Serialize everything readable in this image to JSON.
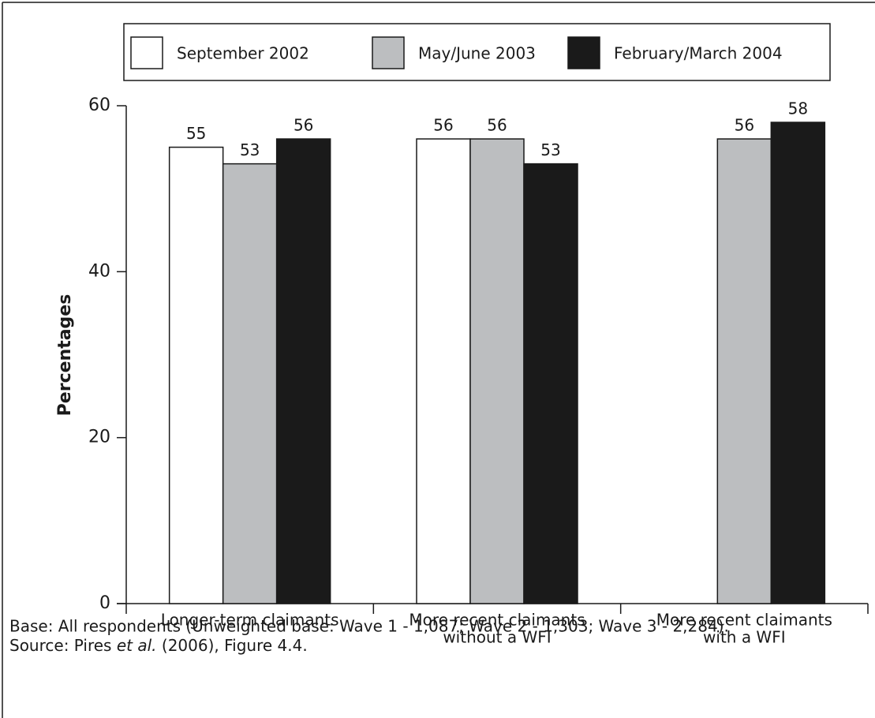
{
  "chart_data": {
    "type": "bar",
    "categories": [
      [
        "Longer-term claimants"
      ],
      [
        "More recent claimants",
        "without a WFI"
      ],
      [
        "More recent claimants",
        "with a WFI"
      ]
    ],
    "series": [
      {
        "name": "September 2002",
        "color": "#ffffff",
        "values": [
          55,
          56,
          null
        ]
      },
      {
        "name": "May/June 2003",
        "color": "#bcbec0",
        "values": [
          53,
          56,
          56
        ]
      },
      {
        "name": "February/March 2004",
        "color": "#1a1a1a",
        "values": [
          56,
          53,
          58
        ]
      }
    ],
    "ylabel": "Percentages",
    "ylim": [
      0,
      60
    ],
    "yticks": [
      0,
      20,
      40,
      60
    ],
    "notes": [
      "Base: All respondents (Unweighted base: Wave 1 - 1,087; Wave 2 - 1,303; Wave 3 - 2,284).",
      [
        "Source: Pires ",
        "et al.",
        " (2006), Figure 4.4."
      ]
    ]
  }
}
